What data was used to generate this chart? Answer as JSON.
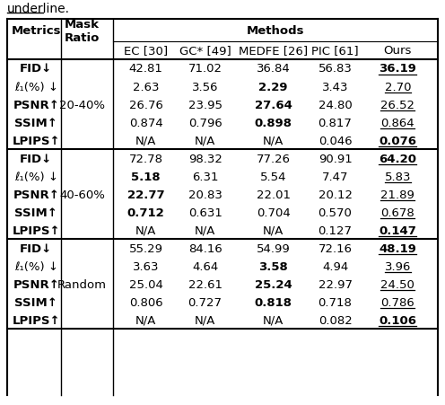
{
  "caption_text": "underline.",
  "methods_span_cols": [
    "EC [30]",
    "GC* [49]",
    "MEDFE [26]",
    "PIC [61]",
    "Ours"
  ],
  "sections": [
    {
      "mask_ratio": "20-40%",
      "rows": [
        {
          "metric": "FID↓",
          "metric_bold": true,
          "values": [
            "42.81",
            "71.02",
            "36.84",
            "56.83",
            "36.19"
          ],
          "bold": [
            false,
            false,
            false,
            false,
            true
          ],
          "underline": [
            false,
            false,
            false,
            false,
            true
          ]
        },
        {
          "metric": "ℓ₁(%) ↓",
          "metric_bold": false,
          "values": [
            "2.63",
            "3.56",
            "2.29",
            "3.43",
            "2.70"
          ],
          "bold": [
            false,
            false,
            true,
            false,
            false
          ],
          "underline": [
            false,
            false,
            false,
            false,
            true
          ]
        },
        {
          "metric": "PSNR↑",
          "metric_bold": true,
          "values": [
            "26.76",
            "23.95",
            "27.64",
            "24.80",
            "26.52"
          ],
          "bold": [
            false,
            false,
            true,
            false,
            false
          ],
          "underline": [
            false,
            false,
            false,
            false,
            true
          ]
        },
        {
          "metric": "SSIM↑",
          "metric_bold": true,
          "values": [
            "0.874",
            "0.796",
            "0.898",
            "0.817",
            "0.864"
          ],
          "bold": [
            false,
            false,
            true,
            false,
            false
          ],
          "underline": [
            false,
            false,
            false,
            false,
            true
          ]
        },
        {
          "metric": "LPIPS↑",
          "metric_bold": true,
          "values": [
            "N/A",
            "N/A",
            "N/A",
            "0.046",
            "0.076"
          ],
          "bold": [
            false,
            false,
            false,
            false,
            true
          ],
          "underline": [
            false,
            false,
            false,
            false,
            true
          ]
        }
      ]
    },
    {
      "mask_ratio": "40-60%",
      "rows": [
        {
          "metric": "FID↓",
          "metric_bold": true,
          "values": [
            "72.78",
            "98.32",
            "77.26",
            "90.91",
            "64.20"
          ],
          "bold": [
            false,
            false,
            false,
            false,
            true
          ],
          "underline": [
            false,
            false,
            false,
            false,
            true
          ]
        },
        {
          "metric": "ℓ₁(%) ↓",
          "metric_bold": false,
          "values": [
            "5.18",
            "6.31",
            "5.54",
            "7.47",
            "5.83"
          ],
          "bold": [
            true,
            false,
            false,
            false,
            false
          ],
          "underline": [
            false,
            false,
            false,
            false,
            true
          ]
        },
        {
          "metric": "PSNR↑",
          "metric_bold": true,
          "values": [
            "22.77",
            "20.83",
            "22.01",
            "20.12",
            "21.89"
          ],
          "bold": [
            true,
            false,
            false,
            false,
            false
          ],
          "underline": [
            false,
            false,
            false,
            false,
            true
          ]
        },
        {
          "metric": "SSIM↑",
          "metric_bold": true,
          "values": [
            "0.712",
            "0.631",
            "0.704",
            "0.570",
            "0.678"
          ],
          "bold": [
            true,
            false,
            false,
            false,
            false
          ],
          "underline": [
            false,
            false,
            false,
            false,
            true
          ]
        },
        {
          "metric": "LPIPS↑",
          "metric_bold": true,
          "values": [
            "N/A",
            "N/A",
            "N/A",
            "0.127",
            "0.147"
          ],
          "bold": [
            false,
            false,
            false,
            false,
            true
          ],
          "underline": [
            false,
            false,
            false,
            false,
            true
          ]
        }
      ]
    },
    {
      "mask_ratio": "Random",
      "rows": [
        {
          "metric": "FID↓",
          "metric_bold": true,
          "values": [
            "55.29",
            "84.16",
            "54.99",
            "72.16",
            "48.19"
          ],
          "bold": [
            false,
            false,
            false,
            false,
            true
          ],
          "underline": [
            false,
            false,
            false,
            false,
            true
          ]
        },
        {
          "metric": "ℓ₁(%) ↓",
          "metric_bold": false,
          "values": [
            "3.63",
            "4.64",
            "3.58",
            "4.94",
            "3.96"
          ],
          "bold": [
            false,
            false,
            true,
            false,
            false
          ],
          "underline": [
            false,
            false,
            false,
            false,
            true
          ]
        },
        {
          "metric": "PSNR↑",
          "metric_bold": true,
          "values": [
            "25.04",
            "22.61",
            "25.24",
            "22.97",
            "24.50"
          ],
          "bold": [
            false,
            false,
            true,
            false,
            false
          ],
          "underline": [
            false,
            false,
            false,
            false,
            true
          ]
        },
        {
          "metric": "SSIM↑",
          "metric_bold": true,
          "values": [
            "0.806",
            "0.727",
            "0.818",
            "0.718",
            "0.786"
          ],
          "bold": [
            false,
            false,
            true,
            false,
            false
          ],
          "underline": [
            false,
            false,
            false,
            false,
            true
          ]
        },
        {
          "metric": "LPIPS↑",
          "metric_bold": true,
          "values": [
            "N/A",
            "N/A",
            "N/A",
            "0.082",
            "0.106"
          ],
          "bold": [
            false,
            false,
            false,
            false,
            true
          ],
          "underline": [
            false,
            false,
            false,
            false,
            true
          ]
        }
      ]
    }
  ],
  "bg_color": "#ffffff"
}
